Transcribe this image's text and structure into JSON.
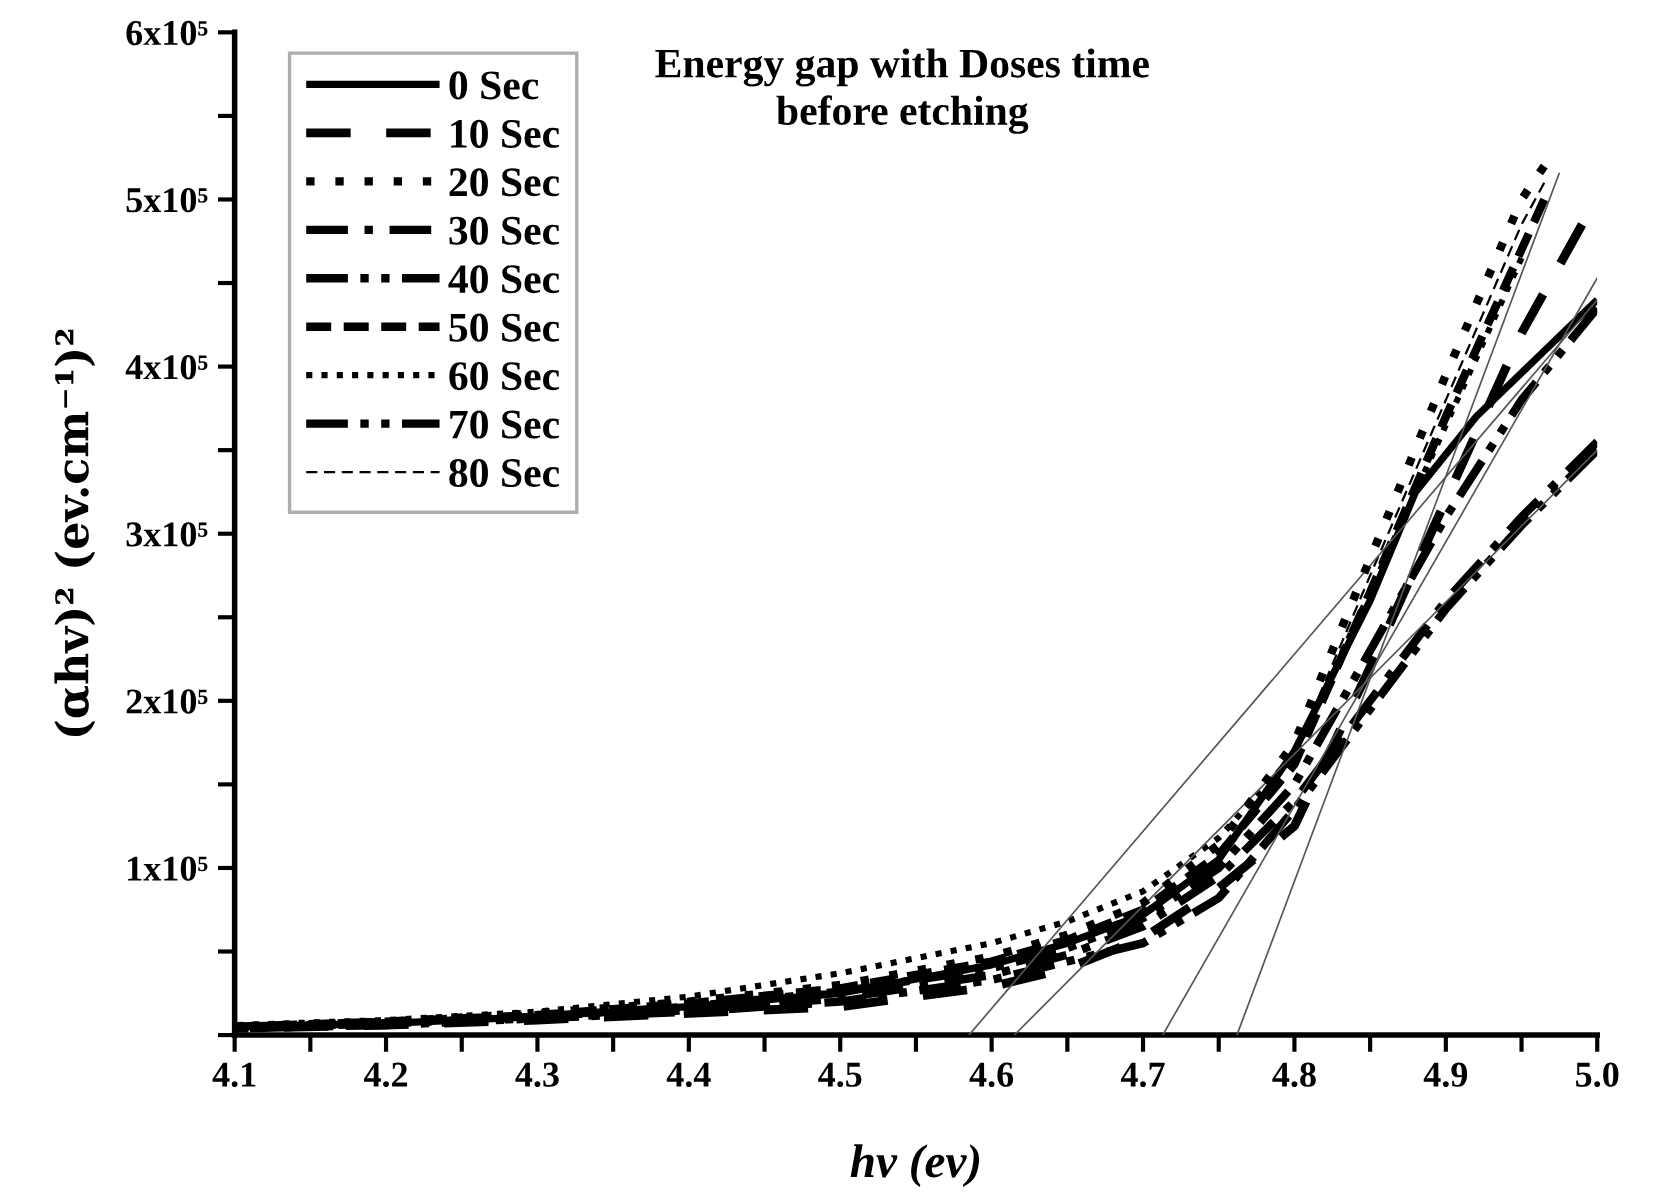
{
  "chart_data": {
    "type": "line",
    "title": "Energy gap with Doses time",
    "subtitle": "before etching",
    "xlabel": "hv (ev)",
    "ylabel": "(αhv)² (ev.cm⁻¹)²",
    "xlim": [
      4.1,
      5.0
    ],
    "ylim": [
      0,
      600000
    ],
    "xticks": [
      4.1,
      {
        "value": 4.15,
        "label": null
      },
      4.2,
      {
        "value": 4.25,
        "label": null
      },
      4.3,
      {
        "value": 4.35,
        "label": null
      },
      4.4,
      {
        "value": 4.45,
        "label": null
      },
      4.5,
      {
        "value": 4.55,
        "label": null
      },
      4.6,
      {
        "value": 4.65,
        "label": null
      },
      4.7,
      {
        "value": 4.75,
        "label": null
      },
      4.8,
      {
        "value": 4.85,
        "label": null
      },
      4.9,
      {
        "value": 4.95,
        "label": null
      },
      {
        "value": 5.0,
        "label": "5.0"
      }
    ],
    "yticks": [
      {
        "value": 0,
        "label": null
      },
      {
        "value": 50000,
        "label": null
      },
      {
        "value": 100000,
        "label": "1x10⁵"
      },
      {
        "value": 150000,
        "label": null
      },
      {
        "value": 200000,
        "label": "2x10⁵"
      },
      {
        "value": 250000,
        "label": null
      },
      {
        "value": 300000,
        "label": "3x10⁵"
      },
      {
        "value": 350000,
        "label": null
      },
      {
        "value": 400000,
        "label": "4x10⁵"
      },
      {
        "value": 450000,
        "label": null
      },
      {
        "value": 500000,
        "label": "5x10⁵"
      },
      {
        "value": 550000,
        "label": null
      },
      {
        "value": 600000,
        "label": "6x10⁵"
      }
    ],
    "grid": false,
    "legend": "top left",
    "marker": "none",
    "series": [
      {
        "name": "0 Sec",
        "color": "#000000",
        "line_style": "solid",
        "x": [
          4.1,
          4.2,
          4.3,
          4.4,
          4.5,
          4.6,
          4.65,
          4.7,
          4.75,
          4.8,
          4.85,
          4.88,
          4.92,
          4.96,
          5.0
        ],
        "values": [
          5000,
          7000,
          11000,
          17000,
          25000,
          42000,
          55000,
          72000,
          105000,
          170000,
          260000,
          325000,
          370000,
          405000,
          440000
        ]
      },
      {
        "name": "10 Sec",
        "color": "#000000",
        "line_style": "longdash",
        "x": [
          4.1,
          4.2,
          4.3,
          4.4,
          4.5,
          4.6,
          4.65,
          4.7,
          4.75,
          4.8,
          4.85,
          4.9,
          4.95,
          4.99
        ],
        "values": [
          4000,
          6000,
          9000,
          13000,
          17000,
          29000,
          40000,
          58000,
          88000,
          125000,
          220000,
          320000,
          420000,
          485000
        ]
      },
      {
        "name": "20 Sec",
        "color": "#000000",
        "line_style": "sparsedot",
        "x": [
          4.1,
          4.2,
          4.3,
          4.4,
          4.5,
          4.6,
          4.65,
          4.7,
          4.75,
          4.8,
          4.85,
          4.9,
          4.95,
          4.965
        ],
        "values": [
          5000,
          8000,
          13000,
          20000,
          30000,
          47000,
          60000,
          79000,
          114000,
          175000,
          285000,
          395000,
          500000,
          520000
        ]
      },
      {
        "name": "30 Sec",
        "color": "#000000",
        "line_style": "dashdot",
        "x": [
          4.1,
          4.2,
          4.3,
          4.4,
          4.5,
          4.6,
          4.65,
          4.7,
          4.75,
          4.8,
          4.85,
          4.9,
          4.95,
          5.0
        ],
        "values": [
          4000,
          7000,
          10000,
          15000,
          22000,
          36000,
          48000,
          65000,
          95000,
          140000,
          200000,
          260000,
          310000,
          355000
        ]
      },
      {
        "name": "40 Sec",
        "color": "#000000",
        "line_style": "dashdotdot",
        "x": [
          4.1,
          4.2,
          4.3,
          4.4,
          4.5,
          4.6,
          4.65,
          4.7,
          4.75,
          4.8,
          4.85,
          4.9,
          4.95,
          5.0
        ],
        "values": [
          5000,
          7000,
          11000,
          17000,
          26000,
          40000,
          52000,
          70000,
          100000,
          150000,
          230000,
          310000,
          380000,
          435000
        ]
      },
      {
        "name": "50 Sec",
        "color": "#000000",
        "line_style": "dashed",
        "x": [
          4.1,
          4.2,
          4.3,
          4.4,
          4.5,
          4.6,
          4.65,
          4.7,
          4.75,
          4.8,
          4.85,
          4.9,
          4.95,
          4.965
        ],
        "values": [
          5000,
          8000,
          12000,
          19000,
          28000,
          44000,
          57000,
          75000,
          108000,
          162000,
          265000,
          370000,
          470000,
          500000
        ]
      },
      {
        "name": "60 Sec",
        "color": "#000000",
        "line_style": "dotted",
        "x": [
          4.1,
          4.2,
          4.3,
          4.4,
          4.5,
          4.6,
          4.65,
          4.7,
          4.75,
          4.8,
          4.85,
          4.9,
          4.95
        ],
        "values": [
          6000,
          9000,
          14000,
          23000,
          37000,
          55000,
          68000,
          86000,
          118000,
          168000,
          265000,
          365000,
          465000
        ]
      },
      {
        "name": "70 Sec",
        "color": "#000000",
        "line_style": "dashdotdot",
        "x": [
          4.1,
          4.2,
          4.3,
          4.4,
          4.5,
          4.6,
          4.65,
          4.7,
          4.75,
          4.8,
          4.85,
          4.9,
          4.95,
          5.0
        ],
        "values": [
          4000,
          6000,
          10000,
          14000,
          20000,
          33000,
          44000,
          55000,
          82000,
          135000,
          195000,
          255000,
          305000,
          350000
        ]
      },
      {
        "name": "80 Sec",
        "color": "#000000",
        "line_style": "thindash",
        "x": [
          4.1,
          4.2,
          4.3,
          4.4,
          4.5,
          4.6,
          4.65,
          4.7,
          4.75,
          4.8,
          4.85,
          4.9,
          4.95,
          4.965
        ],
        "values": [
          5000,
          8000,
          12000,
          18000,
          27000,
          43000,
          56000,
          74000,
          106000,
          168000,
          275000,
          380000,
          485000,
          510000
        ]
      },
      {
        "type": "line",
        "color": "#555555",
        "line_style": "solid",
        "x": [
          4.585,
          5.0
        ],
        "values": [
          0,
          440000
        ]
      },
      {
        "type": "line",
        "color": "#555555",
        "line_style": "solid",
        "x": [
          4.615,
          5.0
        ],
        "values": [
          0,
          350000
        ]
      },
      {
        "type": "line",
        "color": "#555555",
        "line_style": "solid",
        "x": [
          4.713,
          5.0
        ],
        "values": [
          0,
          453000
        ]
      },
      {
        "type": "line",
        "color": "#555555",
        "line_style": "solid",
        "x": [
          4.762,
          4.975
        ],
        "values": [
          0,
          516000
        ]
      }
    ]
  }
}
